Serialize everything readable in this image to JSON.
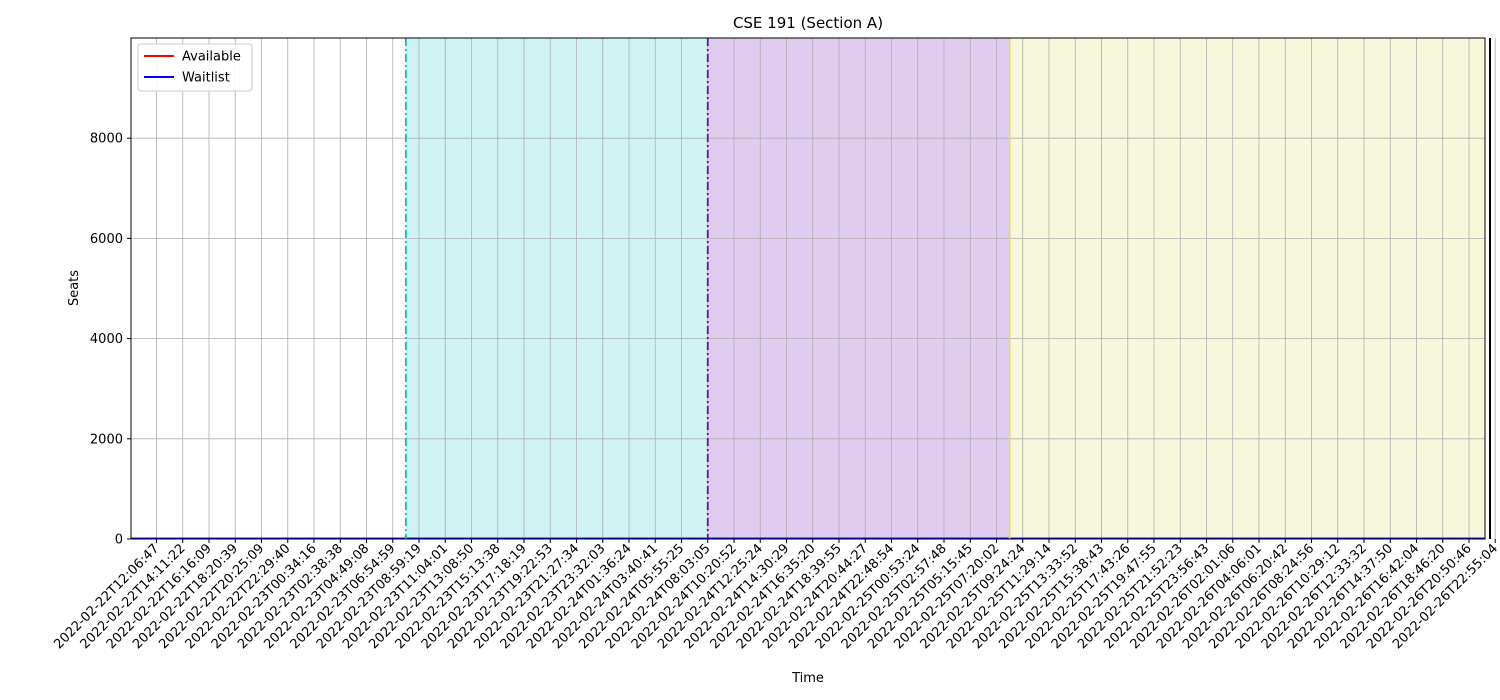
{
  "chart_data": {
    "type": "line",
    "title": "CSE 191 (Section A)",
    "xlabel": "Time",
    "ylabel": "Seats",
    "ylim": [
      0,
      10000
    ],
    "yticks": [
      0,
      2000,
      4000,
      6000,
      8000
    ],
    "grid": true,
    "legend": {
      "placement": "top-left"
    },
    "x_ticks": [
      "2022-02-22T12:06:47",
      "2022-02-22T14:11:22",
      "2022-02-22T16:16:09",
      "2022-02-22T18:20:39",
      "2022-02-22T20:25:09",
      "2022-02-22T22:29:40",
      "2022-02-23T00:34:16",
      "2022-02-23T02:38:38",
      "2022-02-23T04:49:08",
      "2022-02-23T06:54:59",
      "2022-02-23T08:59:19",
      "2022-02-23T11:04:01",
      "2022-02-23T13:08:50",
      "2022-02-23T15:13:38",
      "2022-02-23T17:18:19",
      "2022-02-23T19:22:53",
      "2022-02-23T21:27:34",
      "2022-02-23T23:32:03",
      "2022-02-24T01:36:24",
      "2022-02-24T03:40:41",
      "2022-02-24T05:55:25",
      "2022-02-24T08:03:05",
      "2022-02-24T10:20:52",
      "2022-02-24T12:25:24",
      "2022-02-24T14:30:29",
      "2022-02-24T16:35:20",
      "2022-02-24T18:39:55",
      "2022-02-24T20:44:27",
      "2022-02-24T22:48:54",
      "2022-02-25T00:53:24",
      "2022-02-25T02:57:48",
      "2022-02-25T05:15:45",
      "2022-02-25T07:20:02",
      "2022-02-25T09:24:24",
      "2022-02-25T11:29:14",
      "2022-02-25T13:33:52",
      "2022-02-25T15:38:43",
      "2022-02-25T17:43:26",
      "2022-02-25T19:47:55",
      "2022-02-25T21:52:23",
      "2022-02-25T23:56:43",
      "2022-02-26T02:01:06",
      "2022-02-26T04:06:01",
      "2022-02-26T06:20:42",
      "2022-02-26T08:24:56",
      "2022-02-26T10:29:12",
      "2022-02-26T12:33:32",
      "2022-02-26T14:37:50",
      "2022-02-26T16:42:04",
      "2022-02-26T18:46:20",
      "2022-02-26T20:50:46",
      "2022-02-26T22:55:04"
    ],
    "series": [
      {
        "name": "Available",
        "color": "#ff0000",
        "values_constant": 0
      },
      {
        "name": "Waitlist",
        "color": "#0000ff",
        "values_constant": 0
      }
    ],
    "regions": [
      {
        "from_tick": 9.5,
        "to_tick": 21,
        "color": "#00bfbf",
        "alpha": 0.19,
        "edge_style": "dashdot",
        "edge_color": "#00bfbf"
      },
      {
        "from_tick": 21,
        "to_tick": 32.5,
        "color": "#6a0dad",
        "alpha": 0.21,
        "edge_style": "dashdot",
        "edge_color": "#6a0dad"
      },
      {
        "from_tick": 32.5,
        "to_tick": 50.8,
        "color": "#dede66",
        "alpha": 0.23,
        "edge_style": "solid",
        "edge_color": "#dede66"
      }
    ],
    "end_marker": {
      "at_tick": 50.8,
      "color": "#000000"
    }
  }
}
